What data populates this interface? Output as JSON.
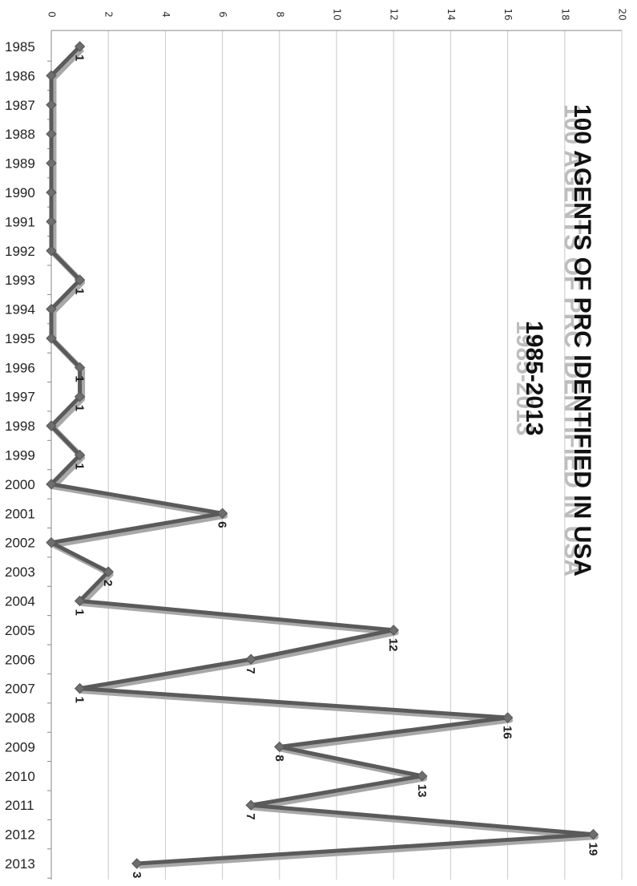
{
  "chart_data": {
    "type": "line",
    "title": "100 AGENTS OF PRC IDENTIFIED IN USA",
    "subtitle": "1985-2013",
    "xlabel": "",
    "ylabel": "",
    "categories": [
      "1985",
      "1986",
      "1987",
      "1988",
      "1989",
      "1990",
      "1991",
      "1992",
      "1993",
      "1994",
      "1995",
      "1996",
      "1997",
      "1998",
      "1999",
      "2000",
      "2001",
      "2002",
      "2003",
      "2004",
      "2005",
      "2006",
      "2007",
      "2008",
      "2009",
      "2010",
      "2011",
      "2012",
      "2013"
    ],
    "values": [
      1,
      0,
      0,
      0,
      0,
      0,
      0,
      0,
      1,
      0,
      0,
      1,
      1,
      0,
      1,
      0,
      6,
      0,
      2,
      1,
      12,
      7,
      1,
      16,
      8,
      13,
      7,
      19,
      3
    ],
    "data_labels": [
      "1",
      "",
      "",
      "",
      "",
      "",
      "",
      "",
      "1",
      "",
      "",
      "1",
      "1",
      "",
      "1",
      "",
      "6",
      "",
      "2",
      "1",
      "12",
      "7",
      "1",
      "16",
      "8",
      "13",
      "7",
      "19",
      "3"
    ],
    "value_axis_ticks": [
      "0",
      "2",
      "4",
      "6",
      "8",
      "10",
      "12",
      "14",
      "16",
      "18",
      "20"
    ],
    "ylim": [
      0,
      20
    ],
    "orientation": "rotated 90° clockwise (years run down the left, values increase to the right)",
    "grid": true,
    "legend": "none",
    "colors": {
      "line": "#5a5a5a",
      "line_shadow": "#a8a8a8",
      "marker": "#6e6e6e",
      "grid": "#c8c8c8",
      "title": "#111111"
    }
  }
}
